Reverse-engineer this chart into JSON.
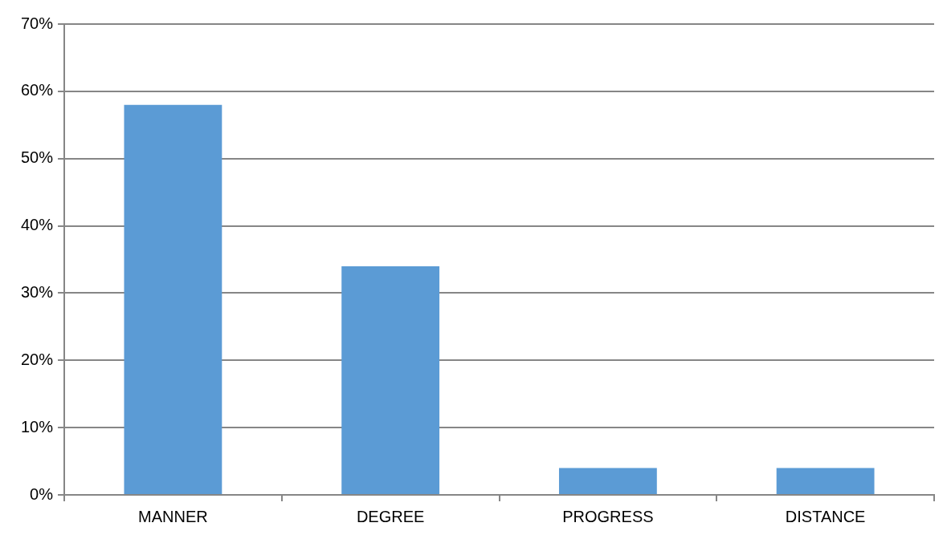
{
  "chart_data": {
    "type": "bar",
    "categories": [
      "MANNER",
      "DEGREE",
      "PROGRESS",
      "DISTANCE"
    ],
    "values": [
      58,
      34,
      4,
      4
    ],
    "color": "#5b9bd5",
    "ylim": [
      0,
      70
    ],
    "yticks": [
      {
        "value": 0,
        "label": "0%"
      },
      {
        "value": 10,
        "label": "10%"
      },
      {
        "value": 20,
        "label": "20%"
      },
      {
        "value": 30,
        "label": "30%"
      },
      {
        "value": 40,
        "label": "40%"
      },
      {
        "value": 50,
        "label": "50%"
      },
      {
        "value": 60,
        "label": "60%"
      },
      {
        "value": 70,
        "label": "70%"
      }
    ],
    "grid": "y",
    "legend": false
  }
}
